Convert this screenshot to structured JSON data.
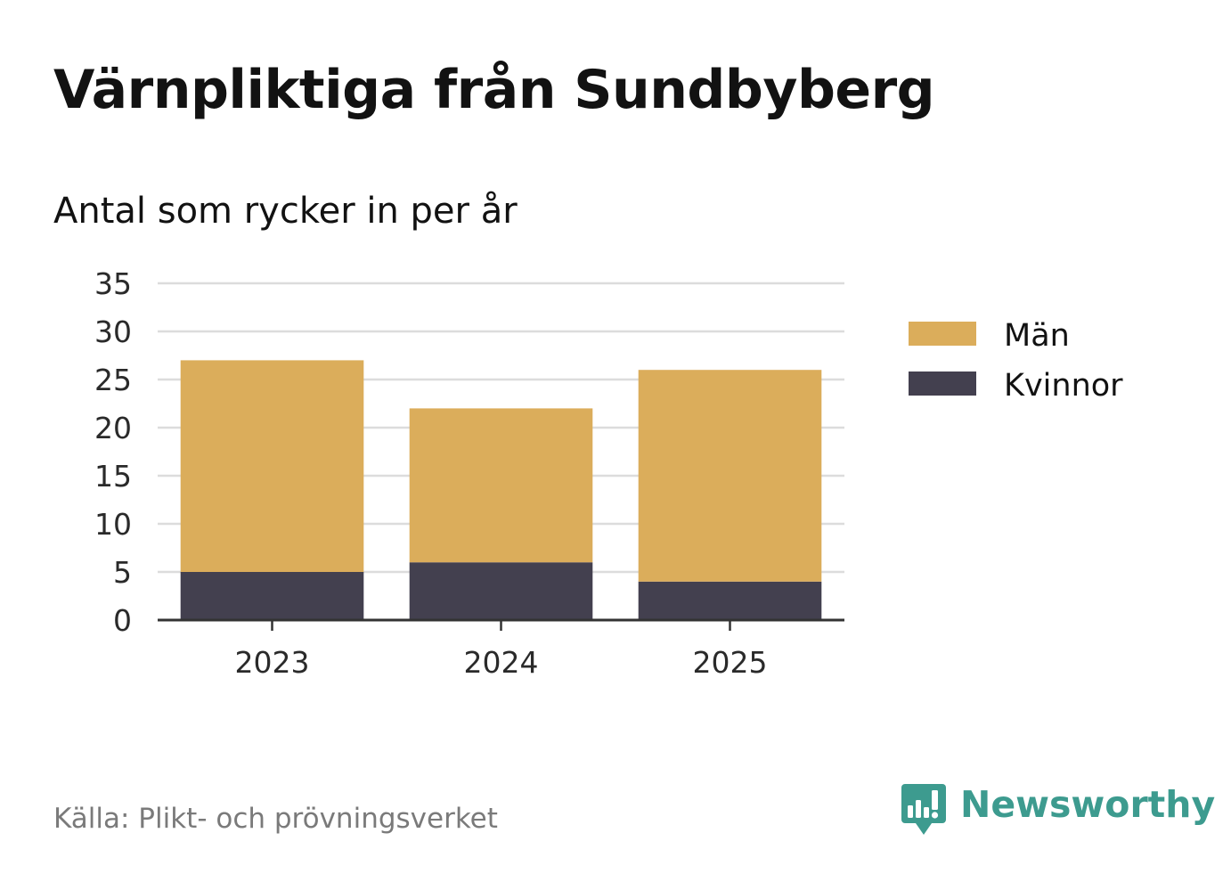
{
  "title": "Värnpliktiga från Sundbyberg",
  "subtitle": "Antal som rycker in per år",
  "source": "Källa: Plikt- och prövningsverket",
  "brand": {
    "name": "Newsworthy",
    "icon": "newsworthy-logo-icon",
    "color": "#3d9b8f"
  },
  "chart_data": {
    "type": "bar",
    "stacked": true,
    "title": "Värnpliktiga från Sundbyberg",
    "subtitle": "Antal som rycker in per år",
    "xlabel": "",
    "ylabel": "",
    "categories": [
      "2023",
      "2024",
      "2025"
    ],
    "series": [
      {
        "name": "Kvinnor",
        "values": [
          5,
          6,
          4
        ],
        "color": "#43404f"
      },
      {
        "name": "Män",
        "values": [
          22,
          16,
          22
        ],
        "color": "#dbad5b"
      }
    ],
    "legend_order": [
      "Män",
      "Kvinnor"
    ],
    "ylim": [
      0,
      35
    ],
    "yticks": [
      0,
      5,
      10,
      15,
      20,
      25,
      30,
      35
    ],
    "grid": true,
    "legend_position": "right"
  }
}
